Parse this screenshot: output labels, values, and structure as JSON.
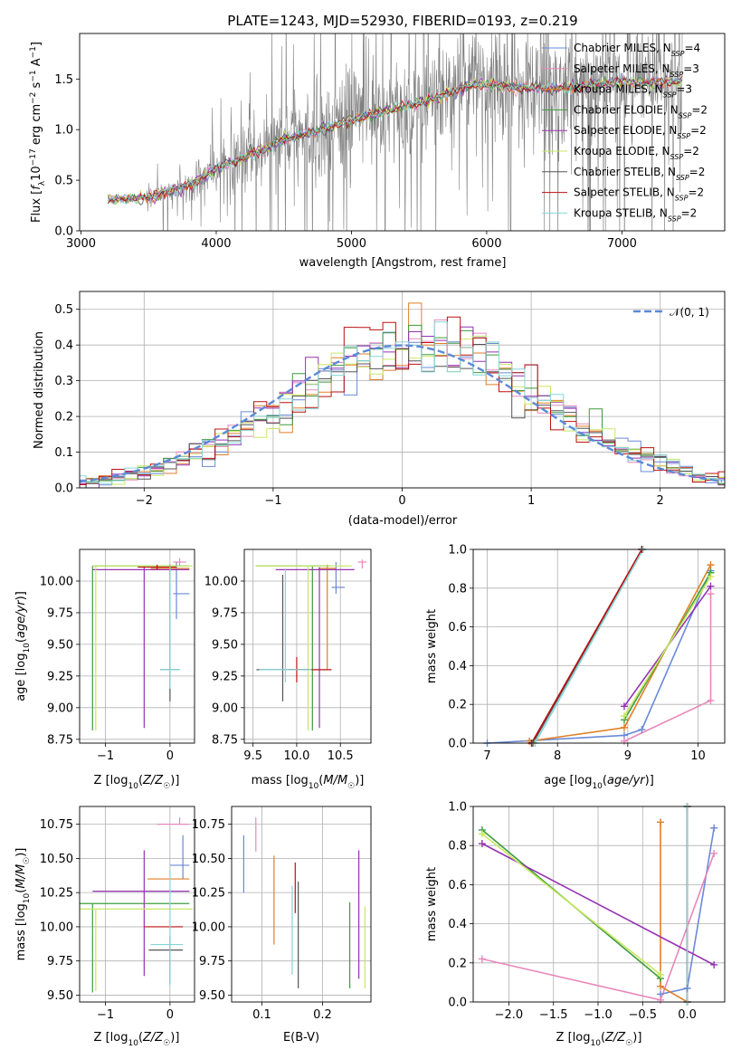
{
  "colors": {
    "chabrier_miles": "#6a8ad8",
    "salpeter_miles": "#e888bb",
    "kroupa_miles": "#e07f28",
    "chabrier_elodie": "#3e9b3e",
    "salpeter_elodie": "#9632b3",
    "kroupa_elodie": "#c8e860",
    "chabrier_stelib": "#555555",
    "salpeter_stelib": "#bb1111",
    "kroupa_stelib": "#86d6d6",
    "data": "#808080",
    "gaussian": "#5b8ad8",
    "grid": "#b0b0b0"
  },
  "chart_data": [
    {
      "type": "line",
      "title": "PLATE=1243, MJD=52930, FIBERID=0193, z=0.219",
      "xlabel": "wavelength [Angstrom, rest frame]",
      "ylabel": "Flux [f_λ 10^-17 erg cm^-2 s^-1 A^-1]",
      "xlim": [
        2990,
        7760
      ],
      "ylim": [
        0,
        1.95
      ],
      "xticks": [
        3000,
        4000,
        5000,
        6000,
        7000
      ],
      "yticks": [
        0.0,
        0.5,
        1.0,
        1.5
      ],
      "grid": false,
      "legend_position": "top-right",
      "spectrum_range": [
        3200,
        7450
      ],
      "model_shape": {
        "x": [
          3200,
          3500,
          3800,
          4000,
          4200,
          4500,
          4800,
          5000,
          5300,
          5600,
          5900,
          6200,
          6500,
          6800,
          7000,
          7200,
          7450
        ],
        "y": [
          0.3,
          0.33,
          0.45,
          0.62,
          0.72,
          0.9,
          1.0,
          1.1,
          1.2,
          1.3,
          1.45,
          1.42,
          1.4,
          1.45,
          1.48,
          1.46,
          1.48
        ]
      },
      "legend": [
        {
          "label": "Chabrier MILES, N",
          "sub": "SSP",
          "suffix": "=4",
          "color_key": "chabrier_miles"
        },
        {
          "label": "Salpeter MILES, N",
          "sub": "SSP",
          "suffix": "=3",
          "color_key": "salpeter_miles"
        },
        {
          "label": "Kroupa MILES, N",
          "sub": "SSP",
          "suffix": "=3",
          "color_key": "kroupa_miles"
        },
        {
          "label": "Chabrier ELODIE, N",
          "sub": "SSP",
          "suffix": "=2",
          "color_key": "chabrier_elodie"
        },
        {
          "label": "Salpeter ELODIE, N",
          "sub": "SSP",
          "suffix": "=2",
          "color_key": "salpeter_elodie"
        },
        {
          "label": "Kroupa ELODIE, N",
          "sub": "SSP",
          "suffix": "=2",
          "color_key": "kroupa_elodie"
        },
        {
          "label": "Chabrier STELIB, N",
          "sub": "SSP",
          "suffix": "=2",
          "color_key": "chabrier_stelib"
        },
        {
          "label": "Salpeter STELIB, N",
          "sub": "SSP",
          "suffix": "=2",
          "color_key": "salpeter_stelib"
        },
        {
          "label": "Kroupa STELIB, N",
          "sub": "SSP",
          "suffix": "=2",
          "color_key": "kroupa_stelib"
        }
      ]
    },
    {
      "type": "line",
      "xlabel": "(data-model)/error",
      "ylabel": "Normed distribution",
      "xlim": [
        -2.5,
        2.5
      ],
      "ylim": [
        0,
        0.55
      ],
      "xticks": [
        -2,
        -1,
        0,
        1,
        2
      ],
      "yticks": [
        0.0,
        0.1,
        0.2,
        0.3,
        0.4,
        0.5
      ],
      "grid": true,
      "bin_width": 0.1,
      "legend_label": "𝒩(0, 1)",
      "legend_position": "top-right"
    },
    {
      "type": "scatter",
      "xlabel": "Z [log10(Z/Z☉)]",
      "ylabel": "age  [log10(age/yr)]",
      "xlim": [
        -1.4,
        0.38
      ],
      "ylim": [
        8.72,
        10.25
      ],
      "xticks": [
        -1,
        0
      ],
      "yticks": [
        8.75,
        9.0,
        9.25,
        9.5,
        9.75,
        10.0
      ],
      "grid": true,
      "points": [
        {
          "k": "chabrier_miles",
          "x": 0.1,
          "y": 9.9,
          "xerr": [
            0.05,
            0.2
          ],
          "yerr": [
            0.2,
            0.25
          ]
        },
        {
          "k": "salpeter_miles",
          "x": 0.15,
          "y": 10.15,
          "xerr": [
            0.1,
            0.1
          ],
          "yerr": [
            0.03,
            0.03
          ]
        },
        {
          "k": "kroupa_miles",
          "x": 0,
          "y": 10.1,
          "xerr": [
            0.3,
            0.3
          ],
          "yerr": [
            0.03,
            0.03
          ]
        },
        {
          "k": "chabrier_elodie",
          "x": -1.2,
          "y": 10.12,
          "xerr": [
            0,
            1.5
          ],
          "yerr": [
            1.3,
            0
          ]
        },
        {
          "k": "salpeter_elodie",
          "x": -0.4,
          "y": 10.09,
          "xerr": [
            0.8,
            0.7
          ],
          "yerr": [
            1.25,
            0.03
          ]
        },
        {
          "k": "kroupa_elodie",
          "x": -1.15,
          "y": 10.12,
          "xerr": [
            0.05,
            1.5
          ],
          "yerr": [
            1.3,
            0
          ]
        },
        {
          "k": "chabrier_stelib",
          "x": 0,
          "y": 9.3,
          "xerr": [
            0.15,
            0.15
          ],
          "yerr": [
            0.25,
            0.82
          ]
        },
        {
          "k": "salpeter_stelib",
          "x": -0.2,
          "y": 10.11,
          "xerr": [
            0.3,
            0.3
          ],
          "yerr": [
            0.02,
            0.02
          ]
        },
        {
          "k": "kroupa_stelib",
          "x": 0,
          "y": 9.3,
          "xerr": [
            0.15,
            0.15
          ],
          "yerr": [
            0.15,
            0.82
          ]
        }
      ]
    },
    {
      "type": "scatter",
      "xlabel": "mass [log10(M/M☉)]",
      "ylabel": "",
      "xlim": [
        9.4,
        10.85
      ],
      "ylim": [
        8.72,
        10.25
      ],
      "xticks": [
        9.5,
        10.0,
        10.5
      ],
      "yticks": [
        8.75,
        9.0,
        9.25,
        9.5,
        9.75,
        10.0
      ],
      "grid": true,
      "points": [
        {
          "k": "chabrier_miles",
          "x": 10.45,
          "y": 9.95,
          "xerr": [
            0.05,
            0.1
          ],
          "yerr": [
            0.05,
            0.2
          ]
        },
        {
          "k": "salpeter_miles",
          "x": 10.75,
          "y": 10.15,
          "xerr": [
            0.05,
            0.05
          ],
          "yerr": [
            0.05,
            0.02
          ]
        },
        {
          "k": "kroupa_miles",
          "x": 10.35,
          "y": 10.1,
          "xerr": [
            0.1,
            0.1
          ],
          "yerr": [
            0.8,
            0.03
          ]
        },
        {
          "k": "chabrier_elodie",
          "x": 10.18,
          "y": 10.12,
          "xerr": [
            0.65,
            0.2
          ],
          "yerr": [
            1.3,
            0
          ]
        },
        {
          "k": "salpeter_elodie",
          "x": 10.26,
          "y": 10.09,
          "xerr": [
            0.5,
            0.4
          ],
          "yerr": [
            1.25,
            0.02
          ]
        },
        {
          "k": "kroupa_elodie",
          "x": 10.13,
          "y": 10.12,
          "xerr": [
            0.6,
            0.5
          ],
          "yerr": [
            1.3,
            0
          ]
        },
        {
          "k": "chabrier_stelib",
          "x": 9.84,
          "y": 9.3,
          "xerr": [
            0.3,
            0.3
          ],
          "yerr": [
            0.25,
            0.75
          ]
        },
        {
          "k": "salpeter_stelib",
          "x": 10.0,
          "y": 9.3,
          "xerr": [
            0.1,
            0.4
          ],
          "yerr": [
            0.1,
            0.1
          ]
        },
        {
          "k": "kroupa_stelib",
          "x": 9.87,
          "y": 9.3,
          "xerr": [
            0.3,
            0.3
          ],
          "yerr": [
            0.1,
            0.8
          ]
        }
      ]
    },
    {
      "type": "line",
      "xlabel": "age  [log10(age/yr)]",
      "ylabel": "mass weight",
      "xlim": [
        6.8,
        10.38
      ],
      "ylim": [
        0,
        1
      ],
      "xticks": [
        7,
        8,
        9,
        10
      ],
      "yticks": [
        0.0,
        0.2,
        0.4,
        0.6,
        0.8,
        1.0
      ],
      "grid": true,
      "series": [
        {
          "k": "chabrier_miles",
          "x": [
            7.0,
            8.95,
            9.2,
            10.18
          ],
          "y": [
            0.0,
            0.04,
            0.07,
            0.89
          ]
        },
        {
          "k": "salpeter_miles",
          "x": [
            8.95,
            10.18,
            10.18
          ],
          "y": [
            0.01,
            0.22,
            0.77
          ]
        },
        {
          "k": "kroupa_miles",
          "x": [
            7.6,
            8.95,
            10.18
          ],
          "y": [
            0.01,
            0.08,
            0.92
          ]
        },
        {
          "k": "chabrier_elodie",
          "x": [
            8.95,
            10.18
          ],
          "y": [
            0.12,
            0.88
          ]
        },
        {
          "k": "salpeter_elodie",
          "x": [
            8.95,
            10.18
          ],
          "y": [
            0.19,
            0.81
          ]
        },
        {
          "k": "kroupa_elodie",
          "x": [
            8.95,
            10.18
          ],
          "y": [
            0.14,
            0.86
          ]
        },
        {
          "k": "chabrier_stelib",
          "x": [
            7.65,
            9.2
          ],
          "y": [
            0.0,
            1.0
          ]
        },
        {
          "k": "salpeter_stelib",
          "x": [
            7.63,
            9.2
          ],
          "y": [
            0.0,
            1.0
          ]
        },
        {
          "k": "kroupa_stelib",
          "x": [
            7.68,
            9.22
          ],
          "y": [
            0.0,
            1.0
          ]
        }
      ]
    },
    {
      "type": "scatter",
      "xlabel": "Z [log10(Z/Z☉)]",
      "ylabel": "mass [log10(M/M☉)]",
      "xlim": [
        -1.4,
        0.38
      ],
      "ylim": [
        9.45,
        10.88
      ],
      "xticks": [
        -1,
        0
      ],
      "yticks": [
        9.5,
        9.75,
        10.0,
        10.25,
        10.5,
        10.75
      ],
      "grid": true,
      "points": [
        {
          "k": "chabrier_miles",
          "x": 0.2,
          "y": 10.45,
          "xerr": [
            0.2,
            0.1
          ],
          "yerr": [
            0.1,
            0.22
          ]
        },
        {
          "k": "salpeter_miles",
          "x": 0.15,
          "y": 10.75,
          "xerr": [
            0.35,
            0.15
          ],
          "yerr": [
            0,
            0.05
          ]
        },
        {
          "k": "kroupa_miles",
          "x": 0,
          "y": 10.35,
          "xerr": [
            0.35,
            0.3
          ],
          "yerr": [
            0,
            0
          ]
        },
        {
          "k": "chabrier_elodie",
          "x": -1.2,
          "y": 10.17,
          "xerr": [
            0.2,
            1.5
          ],
          "yerr": [
            0.65,
            0
          ]
        },
        {
          "k": "salpeter_elodie",
          "x": -0.4,
          "y": 10.26,
          "xerr": [
            0.8,
            0.7
          ],
          "yerr": [
            0.62,
            0.3
          ]
        },
        {
          "k": "kroupa_elodie",
          "x": -1.15,
          "y": 10.13,
          "xerr": [
            0.25,
            1.5
          ],
          "yerr": [
            0.6,
            0
          ]
        },
        {
          "k": "chabrier_stelib",
          "x": 0,
          "y": 9.83,
          "xerr": [
            0.33,
            0.2
          ],
          "yerr": [
            0.25,
            0.1
          ]
        },
        {
          "k": "salpeter_stelib",
          "x": -0.2,
          "y": 10.0,
          "xerr": [
            0.2,
            0.4
          ],
          "yerr": [
            0,
            0
          ]
        },
        {
          "k": "kroupa_stelib",
          "x": 0,
          "y": 9.87,
          "xerr": [
            0.3,
            0.2
          ],
          "yerr": [
            0.3,
            0.55
          ]
        }
      ]
    },
    {
      "type": "scatter",
      "xlabel": "E(B-V)",
      "ylabel": "",
      "xlim": [
        0.05,
        0.28
      ],
      "ylim": [
        9.45,
        10.88
      ],
      "xticks": [
        0.1,
        0.2
      ],
      "yticks": [
        9.5,
        9.75,
        10.0,
        10.25,
        10.5,
        10.75
      ],
      "grid": true,
      "points": [
        {
          "k": "chabrier_miles",
          "x": 0.07,
          "y": 10.45,
          "yerr": [
            0.2,
            0.22
          ]
        },
        {
          "k": "salpeter_miles",
          "x": 0.09,
          "y": 10.7,
          "yerr": [
            0.15,
            0.1
          ]
        },
        {
          "k": "kroupa_miles",
          "x": 0.12,
          "y": 10.2,
          "yerr": [
            0.33,
            0.32
          ]
        },
        {
          "k": "chabrier_elodie",
          "x": 0.245,
          "y": 9.8,
          "yerr": [
            0.25,
            0.38
          ]
        },
        {
          "k": "salpeter_elodie",
          "x": 0.26,
          "y": 10.1,
          "yerr": [
            0.48,
            0.46
          ]
        },
        {
          "k": "kroupa_elodie",
          "x": 0.27,
          "y": 9.9,
          "yerr": [
            0.35,
            0.25
          ]
        },
        {
          "k": "chabrier_stelib",
          "x": 0.16,
          "y": 9.9,
          "yerr": [
            0.35,
            0.43
          ]
        },
        {
          "k": "salpeter_stelib",
          "x": 0.155,
          "y": 10.2,
          "yerr": [
            0.1,
            0.27
          ]
        },
        {
          "k": "kroupa_stelib",
          "x": 0.15,
          "y": 10.0,
          "yerr": [
            0.35,
            0.3
          ]
        }
      ]
    },
    {
      "type": "line",
      "xlabel": "Z [log10(Z/Z☉)]",
      "ylabel": "mass weight",
      "xlim": [
        -2.4,
        0.42
      ],
      "ylim": [
        0,
        1
      ],
      "xticks": [
        -2.0,
        -1.5,
        -1.0,
        -0.5,
        0.0
      ],
      "yticks": [
        0.0,
        0.2,
        0.4,
        0.6,
        0.8,
        1.0
      ],
      "grid": true,
      "series": [
        {
          "k": "chabrier_miles",
          "x": [
            0.3,
            0,
            -0.3
          ],
          "y": [
            0.89,
            0.07,
            0.04
          ]
        },
        {
          "k": "salpeter_miles",
          "x": [
            -2.3,
            -0.3,
            0.3
          ],
          "y": [
            0.22,
            0.01,
            0.76
          ]
        },
        {
          "k": "kroupa_miles",
          "x": [
            -0.3,
            -0.3,
            0
          ],
          "y": [
            0.92,
            0.08,
            0.0
          ]
        },
        {
          "k": "chabrier_elodie",
          "x": [
            -2.3,
            -0.3
          ],
          "y": [
            0.88,
            0.12
          ]
        },
        {
          "k": "salpeter_elodie",
          "x": [
            -2.3,
            0.3
          ],
          "y": [
            0.81,
            0.19
          ]
        },
        {
          "k": "kroupa_elodie",
          "x": [
            -2.3,
            -0.3
          ],
          "y": [
            0.86,
            0.14
          ]
        },
        {
          "k": "chabrier_stelib",
          "x": [
            0.0,
            0.0
          ],
          "y": [
            1.0,
            0.0
          ]
        },
        {
          "k": "salpeter_stelib",
          "x": [
            0.0,
            0.0
          ],
          "y": [
            1.0,
            0.0
          ]
        },
        {
          "k": "kroupa_stelib",
          "x": [
            0.0,
            0.0
          ],
          "y": [
            1.0,
            0.0
          ]
        }
      ]
    }
  ]
}
